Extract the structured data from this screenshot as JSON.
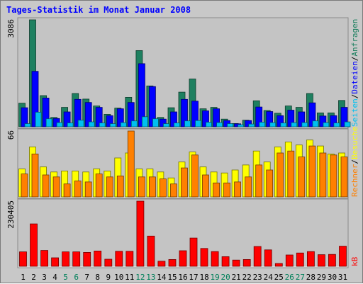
{
  "chart_data": {
    "type": "bar",
    "title": "Tages-Statistik im Monat Januar 2008",
    "categories": [
      "1",
      "2",
      "3",
      "4",
      "5",
      "6",
      "7",
      "8",
      "9",
      "10",
      "11",
      "12",
      "13",
      "14",
      "15",
      "16",
      "17",
      "18",
      "19",
      "20",
      "21",
      "22",
      "23",
      "24",
      "25",
      "26",
      "27",
      "28",
      "29",
      "30",
      "31"
    ],
    "weekend_days": [
      "5",
      "6",
      "12",
      "13",
      "19",
      "20",
      "26",
      "27"
    ],
    "panels": [
      {
        "name": "requests",
        "ymax_label": "3086",
        "ylim": [
          0,
          3086
        ],
        "series": [
          {
            "name": "Anfragen",
            "color": "#1e8060",
            "values": [
              680,
              3086,
              900,
              270,
              560,
              960,
              800,
              600,
              360,
              540,
              850,
              2200,
              1180,
              270,
              550,
              1000,
              1380,
              520,
              560,
              220,
              95,
              190,
              750,
              470,
              390,
              600,
              560,
              960,
              400,
              400,
              760
            ]
          },
          {
            "name": "Dateien",
            "color": "#0000ff",
            "values": [
              550,
              1600,
              830,
              240,
              430,
              790,
              700,
              560,
              320,
              520,
              700,
              1820,
              1160,
              220,
              430,
              790,
              740,
              460,
              520,
              180,
              85,
              180,
              570,
              440,
              320,
              480,
              430,
              690,
              310,
              320,
              560
            ]
          },
          {
            "name": "Seiten",
            "color": "#00c0f0",
            "values": [
              90,
              420,
              230,
              120,
              110,
              190,
              140,
              110,
              90,
              120,
              170,
              290,
              230,
              90,
              110,
              170,
              180,
              130,
              120,
              90,
              60,
              80,
              130,
              120,
              110,
              120,
              120,
              170,
              120,
              110,
              140
            ]
          }
        ]
      },
      {
        "name": "visits",
        "ymax_label": "66",
        "ylim": [
          0,
          66
        ],
        "series": [
          {
            "name": "Besuche",
            "color": "#ffff00",
            "values": [
              28,
              50,
              30,
              25,
              26,
              26,
              25,
              28,
              26,
              39,
              44,
              28,
              28,
              25,
              19,
              35,
              45,
              30,
              25,
              24,
              27,
              32,
              46,
              35,
              50,
              55,
              52,
              57,
              51,
              43,
              44
            ]
          },
          {
            "name": "Rechner",
            "color": "#ff8000",
            "values": [
              23,
              43,
              22,
              20,
              13,
              16,
              15,
              23,
              20,
              21,
              66,
              20,
              20,
              18,
              13,
              29,
              42,
              22,
              14,
              14,
              15,
              20,
              32,
              27,
              44,
              46,
              40,
              51,
              44,
              42,
              40
            ]
          }
        ]
      },
      {
        "name": "volume",
        "ymax_label": "230405",
        "ylim": [
          0,
          230405
        ],
        "series": [
          {
            "name": "kB",
            "color": "#ff0000",
            "values": [
              51000,
              150000,
              56000,
              30000,
              51000,
              51000,
              49000,
              54000,
              25000,
              53000,
              53000,
              230405,
              107000,
              18000,
              24000,
              55000,
              100000,
              63000,
              52000,
              34000,
              22000,
              24000,
              70000,
              58000,
              10000,
              40000,
              47000,
              52000,
              41000,
              42000,
              71000
            ]
          }
        ]
      }
    ]
  }
}
